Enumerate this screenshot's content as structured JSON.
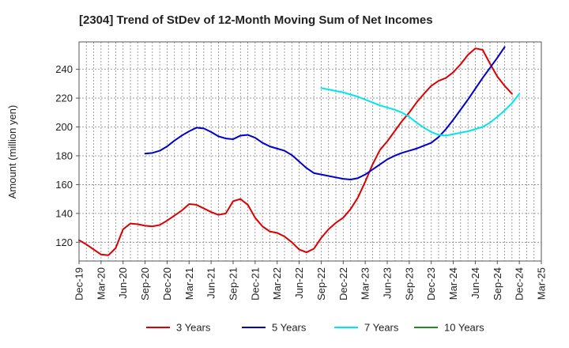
{
  "chart_data": {
    "type": "line",
    "title": "[2304]  Trend of StDev of 12-Month Moving Sum of Net Incomes",
    "ylabel": "Amount (million yen)",
    "xlabel": "",
    "ylim": [
      107,
      259
    ],
    "yticks": [
      120,
      140,
      160,
      180,
      200,
      220,
      240
    ],
    "x_tick_labels": [
      "Dec-19",
      "Mar-20",
      "Jun-20",
      "Sep-20",
      "Dec-20",
      "Mar-21",
      "Jun-21",
      "Sep-21",
      "Dec-21",
      "Mar-22",
      "Jun-22",
      "Sep-22",
      "Dec-22",
      "Mar-23",
      "Jun-23",
      "Sep-23",
      "Dec-23",
      "Mar-24",
      "Jun-24",
      "Sep-24",
      "Dec-24",
      "Mar-25"
    ],
    "grid": true,
    "legend_position": "bottom",
    "series": [
      {
        "name": "3 Years",
        "color": "#dd0000",
        "start": "Dec-19",
        "values": [
          121.5,
          118.5,
          115,
          111.5,
          111,
          116,
          129,
          133,
          132.5,
          131.5,
          131,
          132,
          135,
          138.5,
          142,
          146.5,
          146,
          143.5,
          141,
          139,
          140,
          148.5,
          150,
          146,
          137,
          131,
          127.5,
          126.5,
          124,
          120,
          115,
          113,
          115.5,
          123,
          129,
          133.5,
          137,
          143,
          151,
          162,
          174,
          184,
          190,
          197,
          204,
          210,
          217,
          223,
          228.5,
          232,
          234,
          238,
          243.5,
          250,
          254.5,
          253.5,
          244,
          235,
          228.5,
          223
        ]
      },
      {
        "name": "5 Years",
        "color": "#0000cc",
        "start": "Sep-20",
        "values": [
          181.5,
          182,
          183.5,
          186.5,
          190.5,
          194,
          197,
          199.5,
          199,
          196.5,
          193.5,
          192,
          191.5,
          194,
          194.5,
          192.5,
          189,
          186.5,
          185,
          183.5,
          180.5,
          176,
          171.5,
          168,
          167,
          166,
          165,
          164,
          163.5,
          164.5,
          167,
          170.5,
          174,
          177.5,
          180,
          182,
          183.5,
          185,
          187,
          189,
          193,
          198.5,
          205,
          212,
          219,
          226.5,
          234,
          241,
          248,
          255.5
        ]
      },
      {
        "name": "7 Years",
        "color": "#00e5ee",
        "start": "Sep-22",
        "values": [
          227,
          226,
          225,
          224,
          222.5,
          221,
          219,
          217,
          215,
          213.5,
          212,
          210,
          207,
          203,
          199.5,
          196.5,
          194.5,
          194,
          195,
          196,
          197,
          198.5,
          200,
          203,
          207,
          211.5,
          216.5,
          223
        ]
      },
      {
        "name": "10 Years",
        "color": "#228b22",
        "start": "Sep-22",
        "values": []
      }
    ]
  }
}
